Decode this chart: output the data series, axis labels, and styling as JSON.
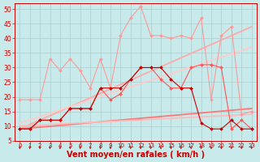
{
  "background_color": "#c8eaea",
  "grid_color": "#aacccc",
  "xlabel": "Vent moyen/en rafales ( km/h )",
  "xlabel_color": "#cc0000",
  "xlabel_fontsize": 7,
  "tick_color": "#cc0000",
  "tick_fontsize": 5.5,
  "ylim": [
    5,
    52
  ],
  "xlim": [
    -0.5,
    23.5
  ],
  "yticks": [
    5,
    10,
    15,
    20,
    25,
    30,
    35,
    40,
    45,
    50
  ],
  "xticks": [
    0,
    1,
    2,
    3,
    4,
    5,
    6,
    7,
    8,
    9,
    10,
    11,
    12,
    13,
    14,
    15,
    16,
    17,
    18,
    19,
    20,
    21,
    22,
    23
  ],
  "lines": [
    {
      "x": [
        0,
        1,
        2,
        3,
        4,
        5,
        6,
        7,
        8,
        9,
        10,
        11,
        12,
        13,
        14,
        15,
        16,
        17,
        18,
        19,
        20,
        21,
        22,
        23
      ],
      "y": [
        19,
        19,
        19,
        33,
        29,
        33,
        29,
        23,
        33,
        23,
        41,
        47,
        51,
        41,
        41,
        40,
        41,
        40,
        47,
        19,
        41,
        44,
        14,
        15
      ],
      "color": "#ff9999",
      "lw": 0.8,
      "marker": "D",
      "ms": 2.0,
      "zorder": 2
    },
    {
      "x": [
        0,
        1,
        2,
        3,
        4,
        5,
        6,
        7,
        8,
        9,
        10,
        11,
        12,
        13,
        14,
        15,
        16,
        17,
        18,
        19,
        20,
        21,
        22,
        23
      ],
      "y": [
        9,
        9,
        12,
        12,
        12,
        16,
        16,
        16,
        23,
        19,
        21,
        26,
        30,
        30,
        26,
        23,
        23,
        30,
        31,
        31,
        30,
        9,
        12,
        9
      ],
      "color": "#ff5555",
      "lw": 0.8,
      "marker": "D",
      "ms": 2.0,
      "zorder": 3
    },
    {
      "x": [
        0,
        1,
        2,
        3,
        4,
        5,
        6,
        7,
        8,
        9,
        10,
        11,
        12,
        13,
        14,
        15,
        16,
        17,
        18,
        19,
        20,
        21,
        22,
        23
      ],
      "y": [
        9,
        9,
        12,
        12,
        12,
        16,
        16,
        16,
        23,
        23,
        23,
        26,
        30,
        30,
        30,
        26,
        23,
        23,
        11,
        9,
        9,
        12,
        9,
        9
      ],
      "color": "#cc0000",
      "lw": 0.8,
      "marker": "D",
      "ms": 2.0,
      "zorder": 4
    },
    {
      "x": [
        0,
        23
      ],
      "y": [
        9,
        44
      ],
      "color": "#ffaaaa",
      "lw": 1.3,
      "marker": null,
      "ms": 0,
      "zorder": 1
    },
    {
      "x": [
        0,
        23
      ],
      "y": [
        11,
        37
      ],
      "color": "#ffcccc",
      "lw": 1.3,
      "marker": null,
      "ms": 0,
      "zorder": 1
    },
    {
      "x": [
        0,
        23
      ],
      "y": [
        9,
        16
      ],
      "color": "#ff7777",
      "lw": 1.3,
      "marker": null,
      "ms": 0,
      "zorder": 1
    },
    {
      "x": [
        0,
        23
      ],
      "y": [
        10,
        14
      ],
      "color": "#ffbbbb",
      "lw": 1.3,
      "marker": null,
      "ms": 0,
      "zorder": 1
    }
  ]
}
